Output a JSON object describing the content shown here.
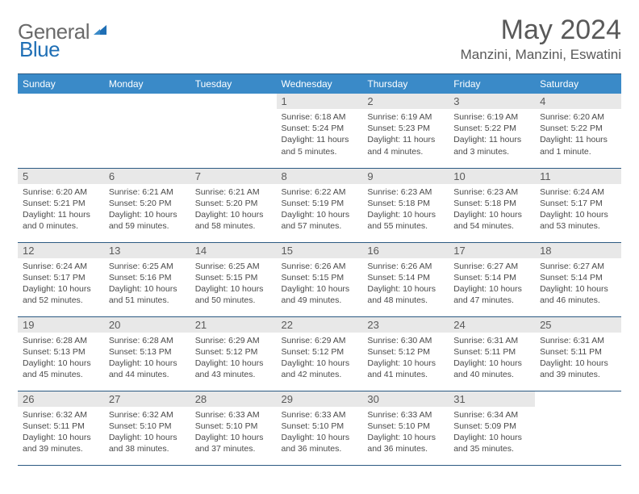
{
  "brand": {
    "text_gray": "General",
    "text_blue": "Blue"
  },
  "title": "May 2024",
  "location": "Manzini, Manzini, Eswatini",
  "colors": {
    "header_bg": "#3a8ac8",
    "header_border": "#2c5a82",
    "daynum_bg": "#e8e8e8",
    "text_gray": "#595959",
    "brand_blue": "#1f6fb5"
  },
  "day_names": [
    "Sunday",
    "Monday",
    "Tuesday",
    "Wednesday",
    "Thursday",
    "Friday",
    "Saturday"
  ],
  "weeks": [
    [
      {
        "n": "",
        "sr": "",
        "ss": "",
        "dl": ""
      },
      {
        "n": "",
        "sr": "",
        "ss": "",
        "dl": ""
      },
      {
        "n": "",
        "sr": "",
        "ss": "",
        "dl": ""
      },
      {
        "n": "1",
        "sr": "Sunrise: 6:18 AM",
        "ss": "Sunset: 5:24 PM",
        "dl": "Daylight: 11 hours and 5 minutes."
      },
      {
        "n": "2",
        "sr": "Sunrise: 6:19 AM",
        "ss": "Sunset: 5:23 PM",
        "dl": "Daylight: 11 hours and 4 minutes."
      },
      {
        "n": "3",
        "sr": "Sunrise: 6:19 AM",
        "ss": "Sunset: 5:22 PM",
        "dl": "Daylight: 11 hours and 3 minutes."
      },
      {
        "n": "4",
        "sr": "Sunrise: 6:20 AM",
        "ss": "Sunset: 5:22 PM",
        "dl": "Daylight: 11 hours and 1 minute."
      }
    ],
    [
      {
        "n": "5",
        "sr": "Sunrise: 6:20 AM",
        "ss": "Sunset: 5:21 PM",
        "dl": "Daylight: 11 hours and 0 minutes."
      },
      {
        "n": "6",
        "sr": "Sunrise: 6:21 AM",
        "ss": "Sunset: 5:20 PM",
        "dl": "Daylight: 10 hours and 59 minutes."
      },
      {
        "n": "7",
        "sr": "Sunrise: 6:21 AM",
        "ss": "Sunset: 5:20 PM",
        "dl": "Daylight: 10 hours and 58 minutes."
      },
      {
        "n": "8",
        "sr": "Sunrise: 6:22 AM",
        "ss": "Sunset: 5:19 PM",
        "dl": "Daylight: 10 hours and 57 minutes."
      },
      {
        "n": "9",
        "sr": "Sunrise: 6:23 AM",
        "ss": "Sunset: 5:18 PM",
        "dl": "Daylight: 10 hours and 55 minutes."
      },
      {
        "n": "10",
        "sr": "Sunrise: 6:23 AM",
        "ss": "Sunset: 5:18 PM",
        "dl": "Daylight: 10 hours and 54 minutes."
      },
      {
        "n": "11",
        "sr": "Sunrise: 6:24 AM",
        "ss": "Sunset: 5:17 PM",
        "dl": "Daylight: 10 hours and 53 minutes."
      }
    ],
    [
      {
        "n": "12",
        "sr": "Sunrise: 6:24 AM",
        "ss": "Sunset: 5:17 PM",
        "dl": "Daylight: 10 hours and 52 minutes."
      },
      {
        "n": "13",
        "sr": "Sunrise: 6:25 AM",
        "ss": "Sunset: 5:16 PM",
        "dl": "Daylight: 10 hours and 51 minutes."
      },
      {
        "n": "14",
        "sr": "Sunrise: 6:25 AM",
        "ss": "Sunset: 5:15 PM",
        "dl": "Daylight: 10 hours and 50 minutes."
      },
      {
        "n": "15",
        "sr": "Sunrise: 6:26 AM",
        "ss": "Sunset: 5:15 PM",
        "dl": "Daylight: 10 hours and 49 minutes."
      },
      {
        "n": "16",
        "sr": "Sunrise: 6:26 AM",
        "ss": "Sunset: 5:14 PM",
        "dl": "Daylight: 10 hours and 48 minutes."
      },
      {
        "n": "17",
        "sr": "Sunrise: 6:27 AM",
        "ss": "Sunset: 5:14 PM",
        "dl": "Daylight: 10 hours and 47 minutes."
      },
      {
        "n": "18",
        "sr": "Sunrise: 6:27 AM",
        "ss": "Sunset: 5:14 PM",
        "dl": "Daylight: 10 hours and 46 minutes."
      }
    ],
    [
      {
        "n": "19",
        "sr": "Sunrise: 6:28 AM",
        "ss": "Sunset: 5:13 PM",
        "dl": "Daylight: 10 hours and 45 minutes."
      },
      {
        "n": "20",
        "sr": "Sunrise: 6:28 AM",
        "ss": "Sunset: 5:13 PM",
        "dl": "Daylight: 10 hours and 44 minutes."
      },
      {
        "n": "21",
        "sr": "Sunrise: 6:29 AM",
        "ss": "Sunset: 5:12 PM",
        "dl": "Daylight: 10 hours and 43 minutes."
      },
      {
        "n": "22",
        "sr": "Sunrise: 6:29 AM",
        "ss": "Sunset: 5:12 PM",
        "dl": "Daylight: 10 hours and 42 minutes."
      },
      {
        "n": "23",
        "sr": "Sunrise: 6:30 AM",
        "ss": "Sunset: 5:12 PM",
        "dl": "Daylight: 10 hours and 41 minutes."
      },
      {
        "n": "24",
        "sr": "Sunrise: 6:31 AM",
        "ss": "Sunset: 5:11 PM",
        "dl": "Daylight: 10 hours and 40 minutes."
      },
      {
        "n": "25",
        "sr": "Sunrise: 6:31 AM",
        "ss": "Sunset: 5:11 PM",
        "dl": "Daylight: 10 hours and 39 minutes."
      }
    ],
    [
      {
        "n": "26",
        "sr": "Sunrise: 6:32 AM",
        "ss": "Sunset: 5:11 PM",
        "dl": "Daylight: 10 hours and 39 minutes."
      },
      {
        "n": "27",
        "sr": "Sunrise: 6:32 AM",
        "ss": "Sunset: 5:10 PM",
        "dl": "Daylight: 10 hours and 38 minutes."
      },
      {
        "n": "28",
        "sr": "Sunrise: 6:33 AM",
        "ss": "Sunset: 5:10 PM",
        "dl": "Daylight: 10 hours and 37 minutes."
      },
      {
        "n": "29",
        "sr": "Sunrise: 6:33 AM",
        "ss": "Sunset: 5:10 PM",
        "dl": "Daylight: 10 hours and 36 minutes."
      },
      {
        "n": "30",
        "sr": "Sunrise: 6:33 AM",
        "ss": "Sunset: 5:10 PM",
        "dl": "Daylight: 10 hours and 36 minutes."
      },
      {
        "n": "31",
        "sr": "Sunrise: 6:34 AM",
        "ss": "Sunset: 5:09 PM",
        "dl": "Daylight: 10 hours and 35 minutes."
      },
      {
        "n": "",
        "sr": "",
        "ss": "",
        "dl": ""
      }
    ]
  ]
}
